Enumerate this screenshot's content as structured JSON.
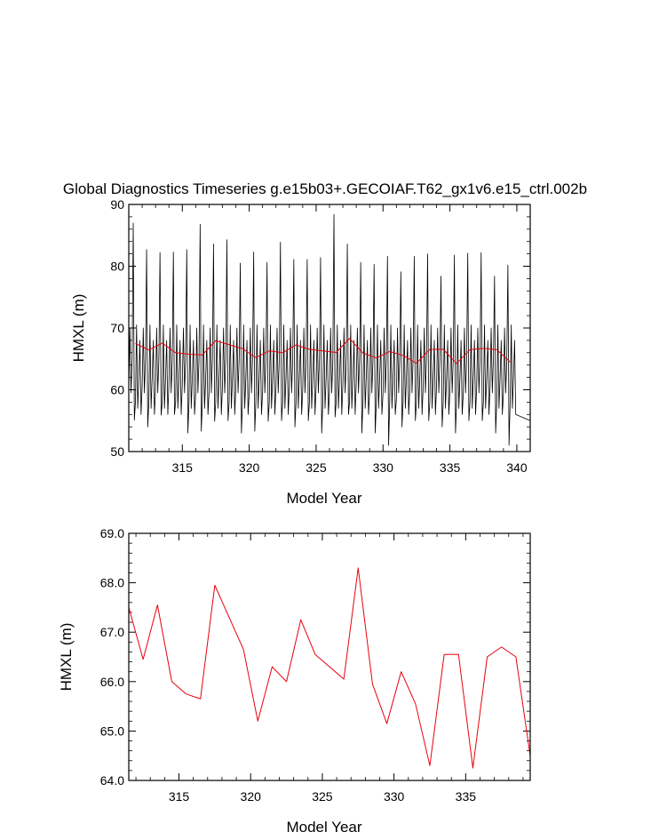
{
  "title": "Global Diagnostics Timeseries g.e15b03+.GECOIAF.T62_gx1v6.e15_ctrl.002b",
  "chart_data": [
    {
      "type": "line",
      "xlabel": "Model Year",
      "ylabel": "HMXL (m)",
      "xlim": [
        311.0,
        341.0
      ],
      "ylim": [
        50,
        90
      ],
      "x_ticks": [
        "315",
        "320",
        "325",
        "330",
        "335",
        "340"
      ],
      "y_ticks": [
        "50",
        "60",
        "70",
        "80",
        "90"
      ],
      "series": [
        {
          "color": "#000000",
          "kind": "monthly",
          "annual_peaks": [
            87.0,
            82.7,
            82.2,
            82.3,
            82.7,
            86.8,
            83.6,
            84.3,
            80.5,
            82.3,
            80.6,
            83.9,
            81.1,
            81.1,
            81.4,
            88.4,
            83.6,
            80.6,
            80.3,
            81.6,
            79.1,
            81.6,
            82.0,
            78.4,
            81.8,
            82.1,
            82.2,
            78.4,
            80.2
          ],
          "annual_troughs": [
            55.1,
            54.0,
            55.9,
            56.0,
            53.0,
            53.3,
            54.9,
            55.0,
            53.0,
            53.3,
            54.9,
            55.0,
            54.0,
            55.0,
            53.0,
            55.6,
            56.0,
            53.0,
            53.0,
            51.0,
            54.0,
            55.0,
            55.0,
            54.0,
            53.0,
            55.0,
            55.0,
            53.0,
            51.0
          ]
        },
        {
          "color": "#e8000b",
          "kind": "annual",
          "x": [
            311.5,
            312.5,
            313.5,
            314.5,
            315.5,
            316.5,
            317.5,
            318.5,
            319.5,
            320.5,
            321.5,
            322.5,
            323.5,
            324.5,
            325.5,
            326.5,
            327.5,
            328.5,
            329.5,
            330.5,
            331.5,
            332.5,
            333.5,
            334.5,
            335.5,
            336.5,
            337.5,
            338.5,
            339.5
          ],
          "y": [
            67.5,
            66.45,
            67.55,
            66.0,
            65.75,
            65.65,
            67.95,
            67.3,
            66.65,
            65.2,
            66.3,
            66.0,
            67.25,
            66.55,
            66.3,
            66.05,
            68.3,
            65.95,
            65.15,
            66.2,
            65.55,
            64.3,
            66.55,
            66.55,
            64.25,
            66.5,
            66.7,
            66.5,
            64.5
          ]
        }
      ]
    },
    {
      "type": "line",
      "xlabel": "Model Year",
      "ylabel": "HMXL (m)",
      "xlim": [
        311.5,
        339.5
      ],
      "ylim": [
        64.0,
        69.0
      ],
      "x_ticks": [
        "315",
        "320",
        "325",
        "330",
        "335"
      ],
      "y_ticks": [
        "64.0",
        "65.0",
        "66.0",
        "67.0",
        "68.0",
        "69.0"
      ],
      "series": [
        {
          "color": "#e8000b",
          "x": [
            311.5,
            312.5,
            313.5,
            314.5,
            315.5,
            316.5,
            317.5,
            318.5,
            319.5,
            320.5,
            321.5,
            322.5,
            323.5,
            324.5,
            325.5,
            326.5,
            327.5,
            328.5,
            329.5,
            330.5,
            331.5,
            332.5,
            333.5,
            334.5,
            335.5,
            336.5,
            337.5,
            338.5,
            339.5
          ],
          "y": [
            67.5,
            66.45,
            67.55,
            66.0,
            65.75,
            65.65,
            67.95,
            67.3,
            66.65,
            65.2,
            66.3,
            66.0,
            67.25,
            66.55,
            66.3,
            66.05,
            68.3,
            65.95,
            65.15,
            66.2,
            65.55,
            64.3,
            66.55,
            66.55,
            64.25,
            66.5,
            66.7,
            66.5,
            64.5
          ]
        }
      ]
    }
  ]
}
